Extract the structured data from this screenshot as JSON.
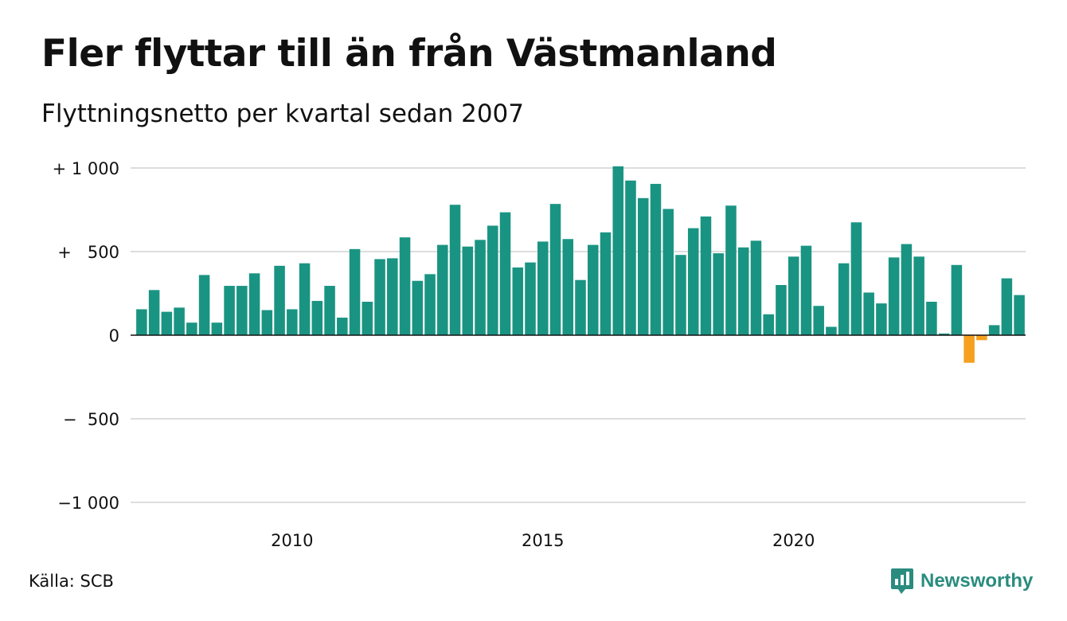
{
  "title": "Fler flyttar till än från Västmanland",
  "subtitle": "Flyttningsnetto per kvartal sedan 2007",
  "source": "Källa: SCB",
  "brand": {
    "name": "Newsworthy",
    "icon": "newsworthy-logo-icon"
  },
  "colors": {
    "positive": "#1a9482",
    "negative": "#f5a01e",
    "grid": "#dddddd",
    "zero_line": "#111111",
    "brand": "#2a8c7f"
  },
  "chart_data": {
    "type": "bar",
    "title": "Fler flyttar till än från Västmanland",
    "subtitle": "Flyttningsnetto per kvartal sedan 2007",
    "xlabel": "",
    "ylabel": "",
    "ylim": [
      -1000,
      1000
    ],
    "y_ticks": [
      {
        "value": 1000,
        "label": "+ 1 000"
      },
      {
        "value": 500,
        "label": "+   500"
      },
      {
        "value": 0,
        "label": "0"
      },
      {
        "value": -500,
        "label": "−  500"
      },
      {
        "value": -1000,
        "label": "−1 000"
      }
    ],
    "x_ticks": [
      {
        "index": 12,
        "label": "2010"
      },
      {
        "index": 32,
        "label": "2015"
      },
      {
        "index": 52,
        "label": "2020"
      }
    ],
    "grid": true,
    "start": "2007 Q1",
    "frequency": "quarterly",
    "values": [
      155,
      270,
      140,
      165,
      75,
      360,
      75,
      295,
      295,
      370,
      150,
      415,
      155,
      430,
      205,
      295,
      105,
      515,
      200,
      455,
      460,
      585,
      325,
      365,
      540,
      780,
      530,
      570,
      655,
      735,
      405,
      435,
      560,
      785,
      575,
      330,
      540,
      615,
      1010,
      925,
      820,
      905,
      755,
      480,
      640,
      710,
      490,
      775,
      525,
      565,
      125,
      300,
      470,
      535,
      175,
      50,
      430,
      675,
      255,
      190,
      465,
      545,
      470,
      200,
      10,
      420,
      -165,
      -30,
      60,
      340,
      240
    ]
  }
}
